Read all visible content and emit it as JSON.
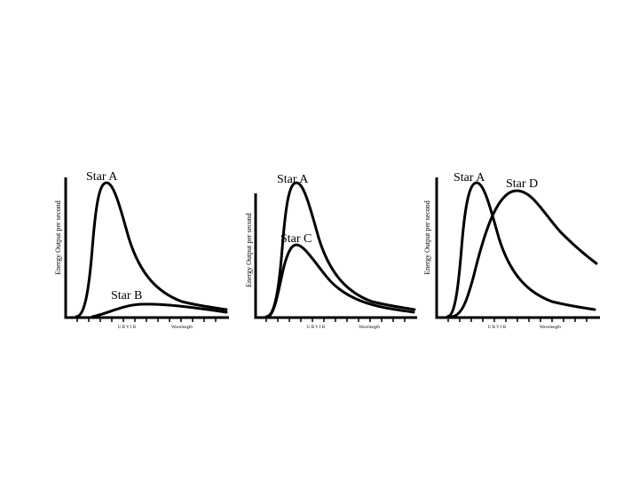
{
  "panels": [
    {
      "y_axis_label": "Energy Output per second",
      "tick_text": "U B V I R",
      "x_axis_label": "Wavelength",
      "stars": [
        {
          "name": "Star A",
          "peak_output": 1.0
        },
        {
          "name": "Star B",
          "peak_output": 0.12
        }
      ]
    },
    {
      "y_axis_label": "Energy Output per second",
      "tick_text": "U B V I R",
      "x_axis_label": "Wavelength",
      "stars": [
        {
          "name": "Star A",
          "peak_output": 1.0
        },
        {
          "name": "Star C",
          "peak_output": 0.53
        }
      ]
    },
    {
      "y_axis_label": "Energy Output per second",
      "tick_text": "U B V I R",
      "x_axis_label": "Wavelength",
      "stars": [
        {
          "name": "Star A",
          "peak_output": 1.0
        },
        {
          "name": "Star D",
          "peak_output": 0.96
        }
      ]
    }
  ]
}
